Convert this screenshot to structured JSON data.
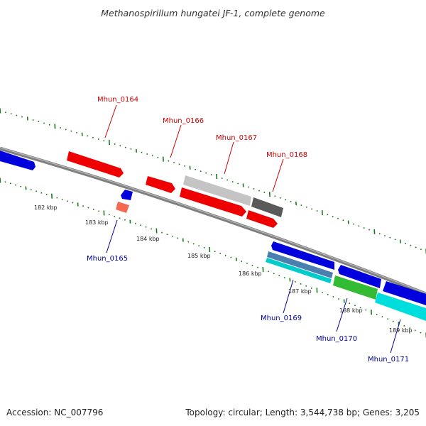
{
  "title": "Methanospirillum hungatei JF-1, complete genome",
  "footer": {
    "accession": "Accession: NC_007796",
    "summary": "Topology: circular; Length: 3,544,738 bp; Genes: 3,205"
  },
  "colors": {
    "backbone": "#888888",
    "tick": "#1a7a1a",
    "forward_label": "#cc0000",
    "reverse_label": "#000099",
    "red": "#ee0000",
    "blue": "#0000dd",
    "light_gray": "#c0c0c0",
    "dark_gray": "#555555",
    "salmon": "#f46a50",
    "green": "#33bb33",
    "cyan": "#00dddd",
    "steel_blue": "#4a7fb0"
  },
  "scale_labels": [
    "182 kbp",
    "183 kbp",
    "184 kbp",
    "185 kbp",
    "186 kbp",
    "187 kbp",
    "188 kbp",
    "189 kbp"
  ],
  "gene_labels": [
    {
      "id": "Mhun_0164",
      "strand": "forward"
    },
    {
      "id": "Mhun_0165",
      "strand": "reverse"
    },
    {
      "id": "Mhun_0166",
      "strand": "forward"
    },
    {
      "id": "Mhun_0167",
      "strand": "forward"
    },
    {
      "id": "Mhun_0168",
      "strand": "forward"
    },
    {
      "id": "Mhun_0169",
      "strand": "reverse"
    },
    {
      "id": "Mhun_0170",
      "strand": "reverse"
    },
    {
      "id": "Mhun_0171",
      "strand": "reverse"
    }
  ]
}
